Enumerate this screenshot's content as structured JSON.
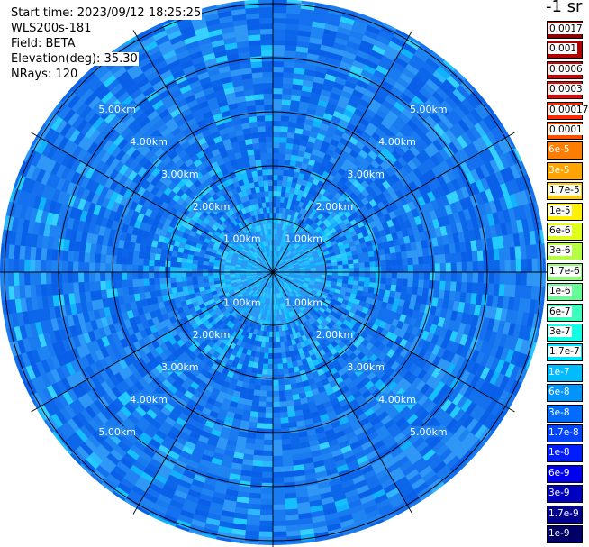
{
  "info": {
    "start_time": "Start time: 2023/09/12 18:25:25",
    "instrument": "WLS200s-181",
    "field": "Field: BETA",
    "elevation": "Elevation(deg): 35.30",
    "nrays": "NRays: 120"
  },
  "units": "-1 sr",
  "range_rings": [
    "1.00km",
    "2.00km",
    "3.00km",
    "4.00km",
    "5.00km"
  ],
  "colorbar": [
    {
      "label": "0.0017",
      "color": "#8b0000",
      "text": "dark"
    },
    {
      "label": "0.001",
      "color": "#b00000",
      "text": "dark"
    },
    {
      "label": "0.0006",
      "color": "#d40000",
      "text": "dark"
    },
    {
      "label": "0.0003",
      "color": "#f50000",
      "text": "dark"
    },
    {
      "label": "0.00017",
      "color": "#ff2a00",
      "text": "dark"
    },
    {
      "label": "0.0001",
      "color": "#ff5000",
      "text": "dark"
    },
    {
      "label": "6e-5",
      "color": "#ff7d00",
      "text": "light"
    },
    {
      "label": "3e-5",
      "color": "#ffa400",
      "text": "light"
    },
    {
      "label": "1.7e-5",
      "color": "#ffcb00",
      "text": "dark"
    },
    {
      "label": "1e-5",
      "color": "#fff000",
      "text": "dark"
    },
    {
      "label": "6e-6",
      "color": "#dfff1a",
      "text": "dark"
    },
    {
      "label": "3e-6",
      "color": "#b5ff43",
      "text": "dark"
    },
    {
      "label": "1.7e-6",
      "color": "#8cff6c",
      "text": "dark"
    },
    {
      "label": "1e-6",
      "color": "#63ff95",
      "text": "dark"
    },
    {
      "label": "6e-7",
      "color": "#3affbd",
      "text": "dark"
    },
    {
      "label": "3e-7",
      "color": "#12ffe6",
      "text": "dark"
    },
    {
      "label": "1.7e-7",
      "color": "#00e4ff",
      "text": "dark"
    },
    {
      "label": "1e-7",
      "color": "#00bcff",
      "text": "light"
    },
    {
      "label": "6e-8",
      "color": "#0094ff",
      "text": "light"
    },
    {
      "label": "3e-8",
      "color": "#006cff",
      "text": "light"
    },
    {
      "label": "1.7e-8",
      "color": "#0044ff",
      "text": "light"
    },
    {
      "label": "1e-8",
      "color": "#001cff",
      "text": "light"
    },
    {
      "label": "6e-9",
      "color": "#0000f0",
      "text": "light"
    },
    {
      "label": "3e-9",
      "color": "#0000c0",
      "text": "light"
    },
    {
      "label": "1.7e-9",
      "color": "#00008f",
      "text": "light"
    },
    {
      "label": "1e-9",
      "color": "#000066",
      "text": "light"
    }
  ]
}
